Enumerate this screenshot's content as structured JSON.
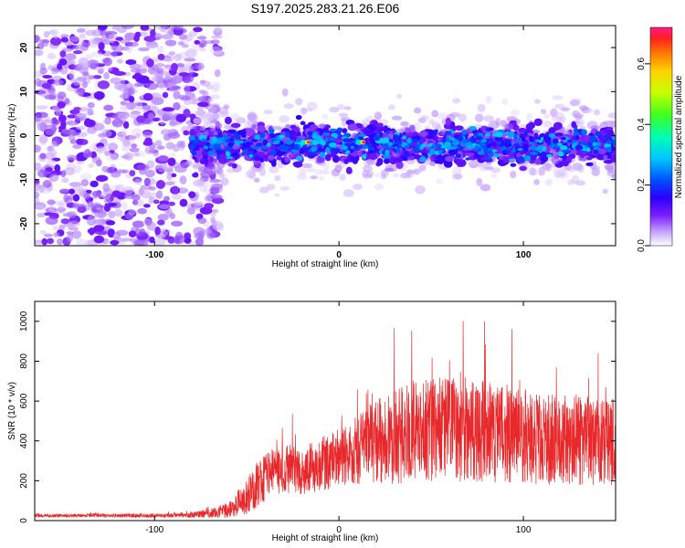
{
  "title": "S197.2025.283.21.26.E06",
  "chart_data": [
    {
      "type": "heatmap",
      "xlabel": "Height of straight line (km)",
      "ylabel": "Frequency (Hz)",
      "xlim": [
        -165,
        150
      ],
      "ylim": [
        -25,
        25
      ],
      "xticks": [
        -100,
        0,
        100
      ],
      "yticks": [
        -20,
        -10,
        0,
        10,
        20
      ],
      "colorbar": {
        "label": "Normalized spectral amplitude",
        "range": [
          0,
          0.72
        ],
        "ticks": [
          "0.0",
          "0.2",
          "0.4",
          "0.6"
        ]
      },
      "features": {
        "noise_region_x": [
          -165,
          -65
        ],
        "signal_onset_x": -80,
        "signal_band_center_hz": -2,
        "signal_band_halfwidth_hz": 4,
        "peak_amplitude": 0.7,
        "peak_locations_x": [
          -17,
          13
        ]
      }
    },
    {
      "type": "line",
      "xlabel": "Height of straight line (km)",
      "ylabel": "SNR (10 * v/v)",
      "xlim": [
        -165,
        150
      ],
      "ylim": [
        0,
        1100
      ],
      "xticks": [
        -100,
        0,
        100
      ],
      "yticks": [
        0,
        200,
        400,
        600,
        800,
        1000
      ],
      "series": [
        {
          "name": "SNR",
          "color": "#e8282b",
          "x": [
            -165,
            -140,
            -120,
            -100,
            -80,
            -60,
            -50,
            -40,
            -30,
            -20,
            -10,
            0,
            10,
            20,
            30,
            40,
            50,
            60,
            70,
            80,
            90,
            100,
            110,
            120,
            130,
            140,
            150
          ],
          "values": [
            25,
            25,
            25,
            25,
            28,
            50,
            120,
            230,
            260,
            250,
            280,
            320,
            350,
            400,
            420,
            450,
            460,
            460,
            455,
            450,
            430,
            420,
            410,
            405,
            400,
            400,
            400
          ],
          "spread": [
            12,
            12,
            12,
            14,
            18,
            50,
            120,
            180,
            170,
            160,
            180,
            200,
            230,
            280,
            320,
            340,
            350,
            350,
            350,
            340,
            330,
            320,
            310,
            300,
            300,
            300,
            300
          ]
        }
      ]
    }
  ]
}
